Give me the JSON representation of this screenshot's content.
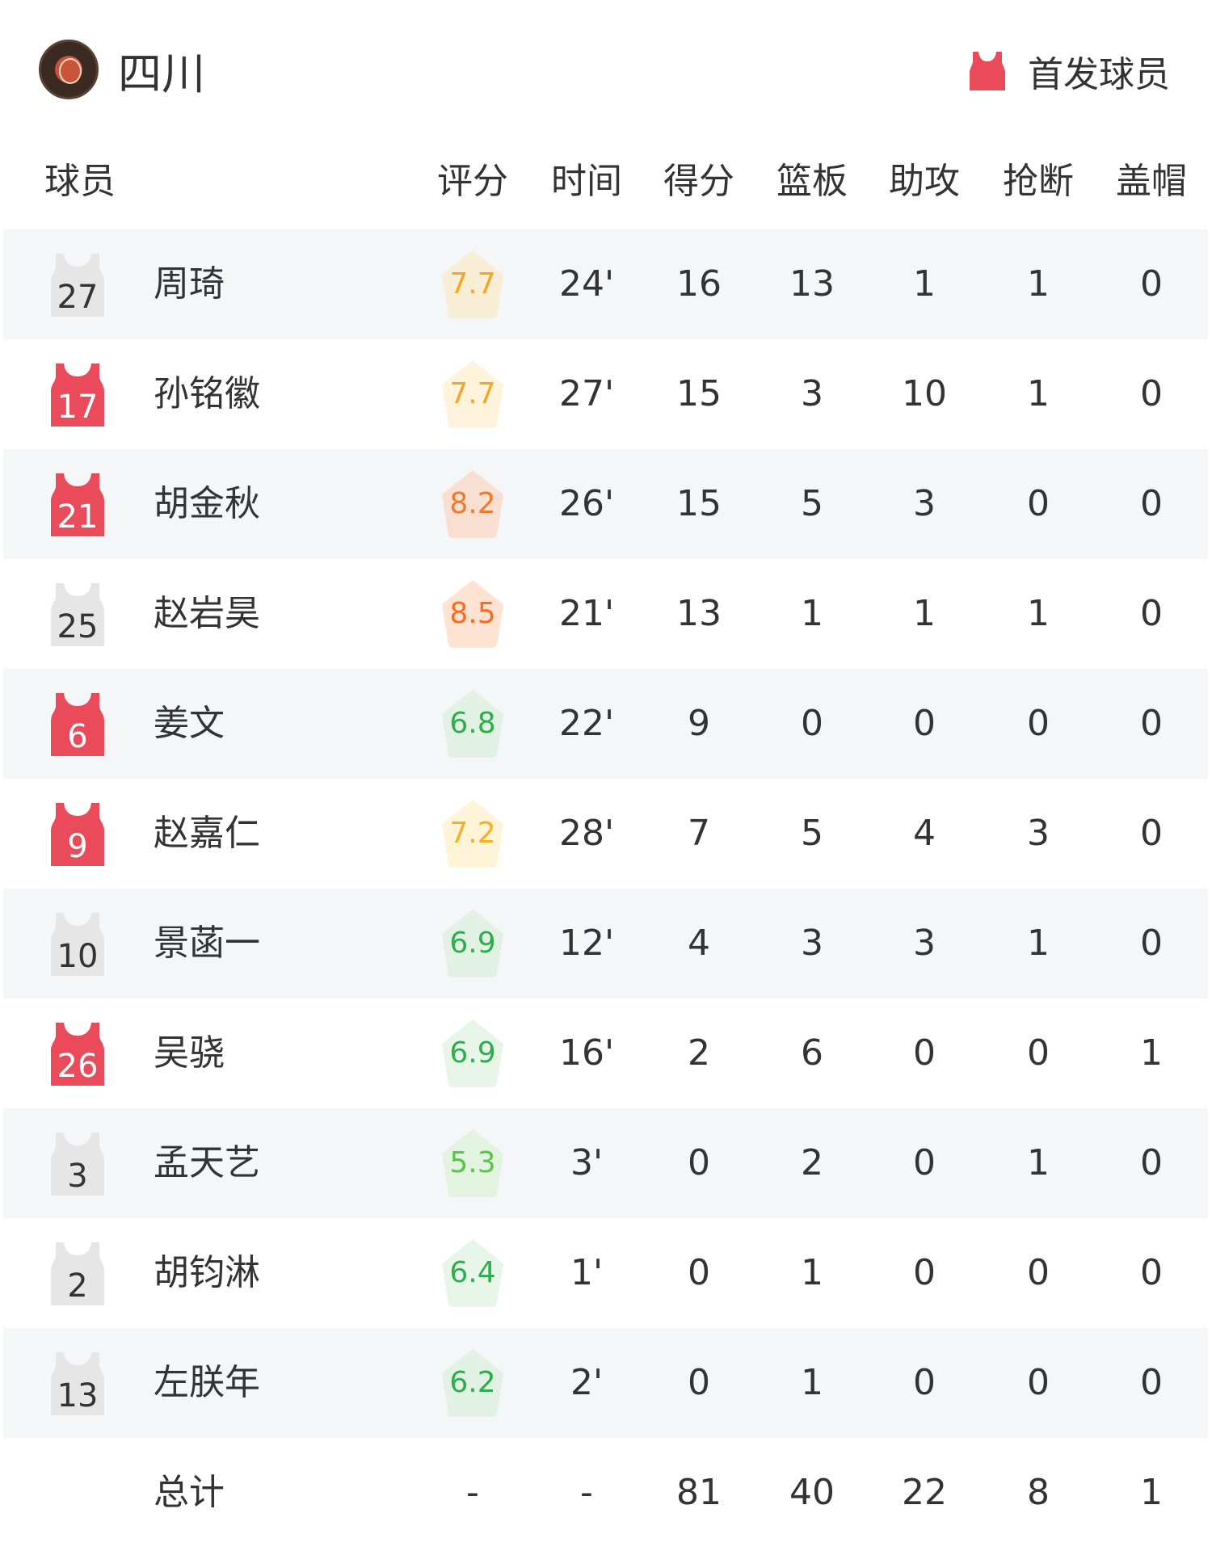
{
  "team": {
    "name": "四川",
    "logo": "SCBA"
  },
  "legend": {
    "label": "首发球员",
    "icon": "jersey-icon",
    "color": "#e94b5b"
  },
  "headers": [
    "球员",
    "评分",
    "时间",
    "得分",
    "篮板",
    "助攻",
    "抢断",
    "盖帽"
  ],
  "players": [
    {
      "number": "27",
      "name": "周琦",
      "starter": false,
      "rating": "7.7",
      "min": "24'",
      "pts": "16",
      "reb": "13",
      "ast": "1",
      "stl": "1",
      "blk": "0",
      "rc": "#f5a623",
      "rb": "#f8eed6"
    },
    {
      "number": "17",
      "name": "孙铭徽",
      "starter": true,
      "rating": "7.7",
      "min": "27'",
      "pts": "15",
      "reb": "3",
      "ast": "10",
      "stl": "1",
      "blk": "0",
      "rc": "#f5a623",
      "rb": "#fff3dc"
    },
    {
      "number": "21",
      "name": "胡金秋",
      "starter": true,
      "rating": "8.2",
      "min": "26'",
      "pts": "15",
      "reb": "5",
      "ast": "3",
      "stl": "0",
      "blk": "0",
      "rc": "#ef7a2e",
      "rb": "#f8dfd1"
    },
    {
      "number": "25",
      "name": "赵岩昊",
      "starter": false,
      "rating": "8.5",
      "min": "21'",
      "pts": "13",
      "reb": "1",
      "ast": "1",
      "stl": "1",
      "blk": "0",
      "rc": "#fb6b1c",
      "rb": "#fee3d3"
    },
    {
      "number": "6",
      "name": "姜文",
      "starter": true,
      "rating": "6.8",
      "min": "22'",
      "pts": "9",
      "reb": "0",
      "ast": "0",
      "stl": "0",
      "blk": "0",
      "rc": "#2ead4d",
      "rb": "#e1f1e4"
    },
    {
      "number": "9",
      "name": "赵嘉仁",
      "starter": true,
      "rating": "7.2",
      "min": "28'",
      "pts": "7",
      "reb": "5",
      "ast": "4",
      "stl": "3",
      "blk": "0",
      "rc": "#f5b025",
      "rb": "#fff3d8"
    },
    {
      "number": "10",
      "name": "景菡一",
      "starter": false,
      "rating": "6.9",
      "min": "12'",
      "pts": "4",
      "reb": "3",
      "ast": "3",
      "stl": "1",
      "blk": "0",
      "rc": "#2ead4d",
      "rb": "#e1f1e4"
    },
    {
      "number": "26",
      "name": "吴骁",
      "starter": true,
      "rating": "6.9",
      "min": "16'",
      "pts": "2",
      "reb": "6",
      "ast": "0",
      "stl": "0",
      "blk": "1",
      "rc": "#2ead4d",
      "rb": "#e8f6ea"
    },
    {
      "number": "3",
      "name": "孟天艺",
      "starter": false,
      "rating": "5.3",
      "min": "3'",
      "pts": "0",
      "reb": "2",
      "ast": "0",
      "stl": "1",
      "blk": "0",
      "rc": "#5cc24a",
      "rb": "#e2f3df"
    },
    {
      "number": "2",
      "name": "胡钧淋",
      "starter": false,
      "rating": "6.4",
      "min": "1'",
      "pts": "0",
      "reb": "1",
      "ast": "0",
      "stl": "0",
      "blk": "0",
      "rc": "#2ead4d",
      "rb": "#e8f6ea"
    },
    {
      "number": "13",
      "name": "左朕年",
      "starter": false,
      "rating": "6.2",
      "min": "2'",
      "pts": "0",
      "reb": "1",
      "ast": "0",
      "stl": "0",
      "blk": "0",
      "rc": "#2ead4d",
      "rb": "#e1f1e4"
    }
  ],
  "totals": {
    "label": "总计",
    "rating": "-",
    "min": "-",
    "pts": "81",
    "reb": "40",
    "ast": "22",
    "stl": "8",
    "blk": "1"
  },
  "colors": {
    "starter": "#e94b5b",
    "bench": "#e6e6e6",
    "stripe": "#f5f6f8"
  }
}
